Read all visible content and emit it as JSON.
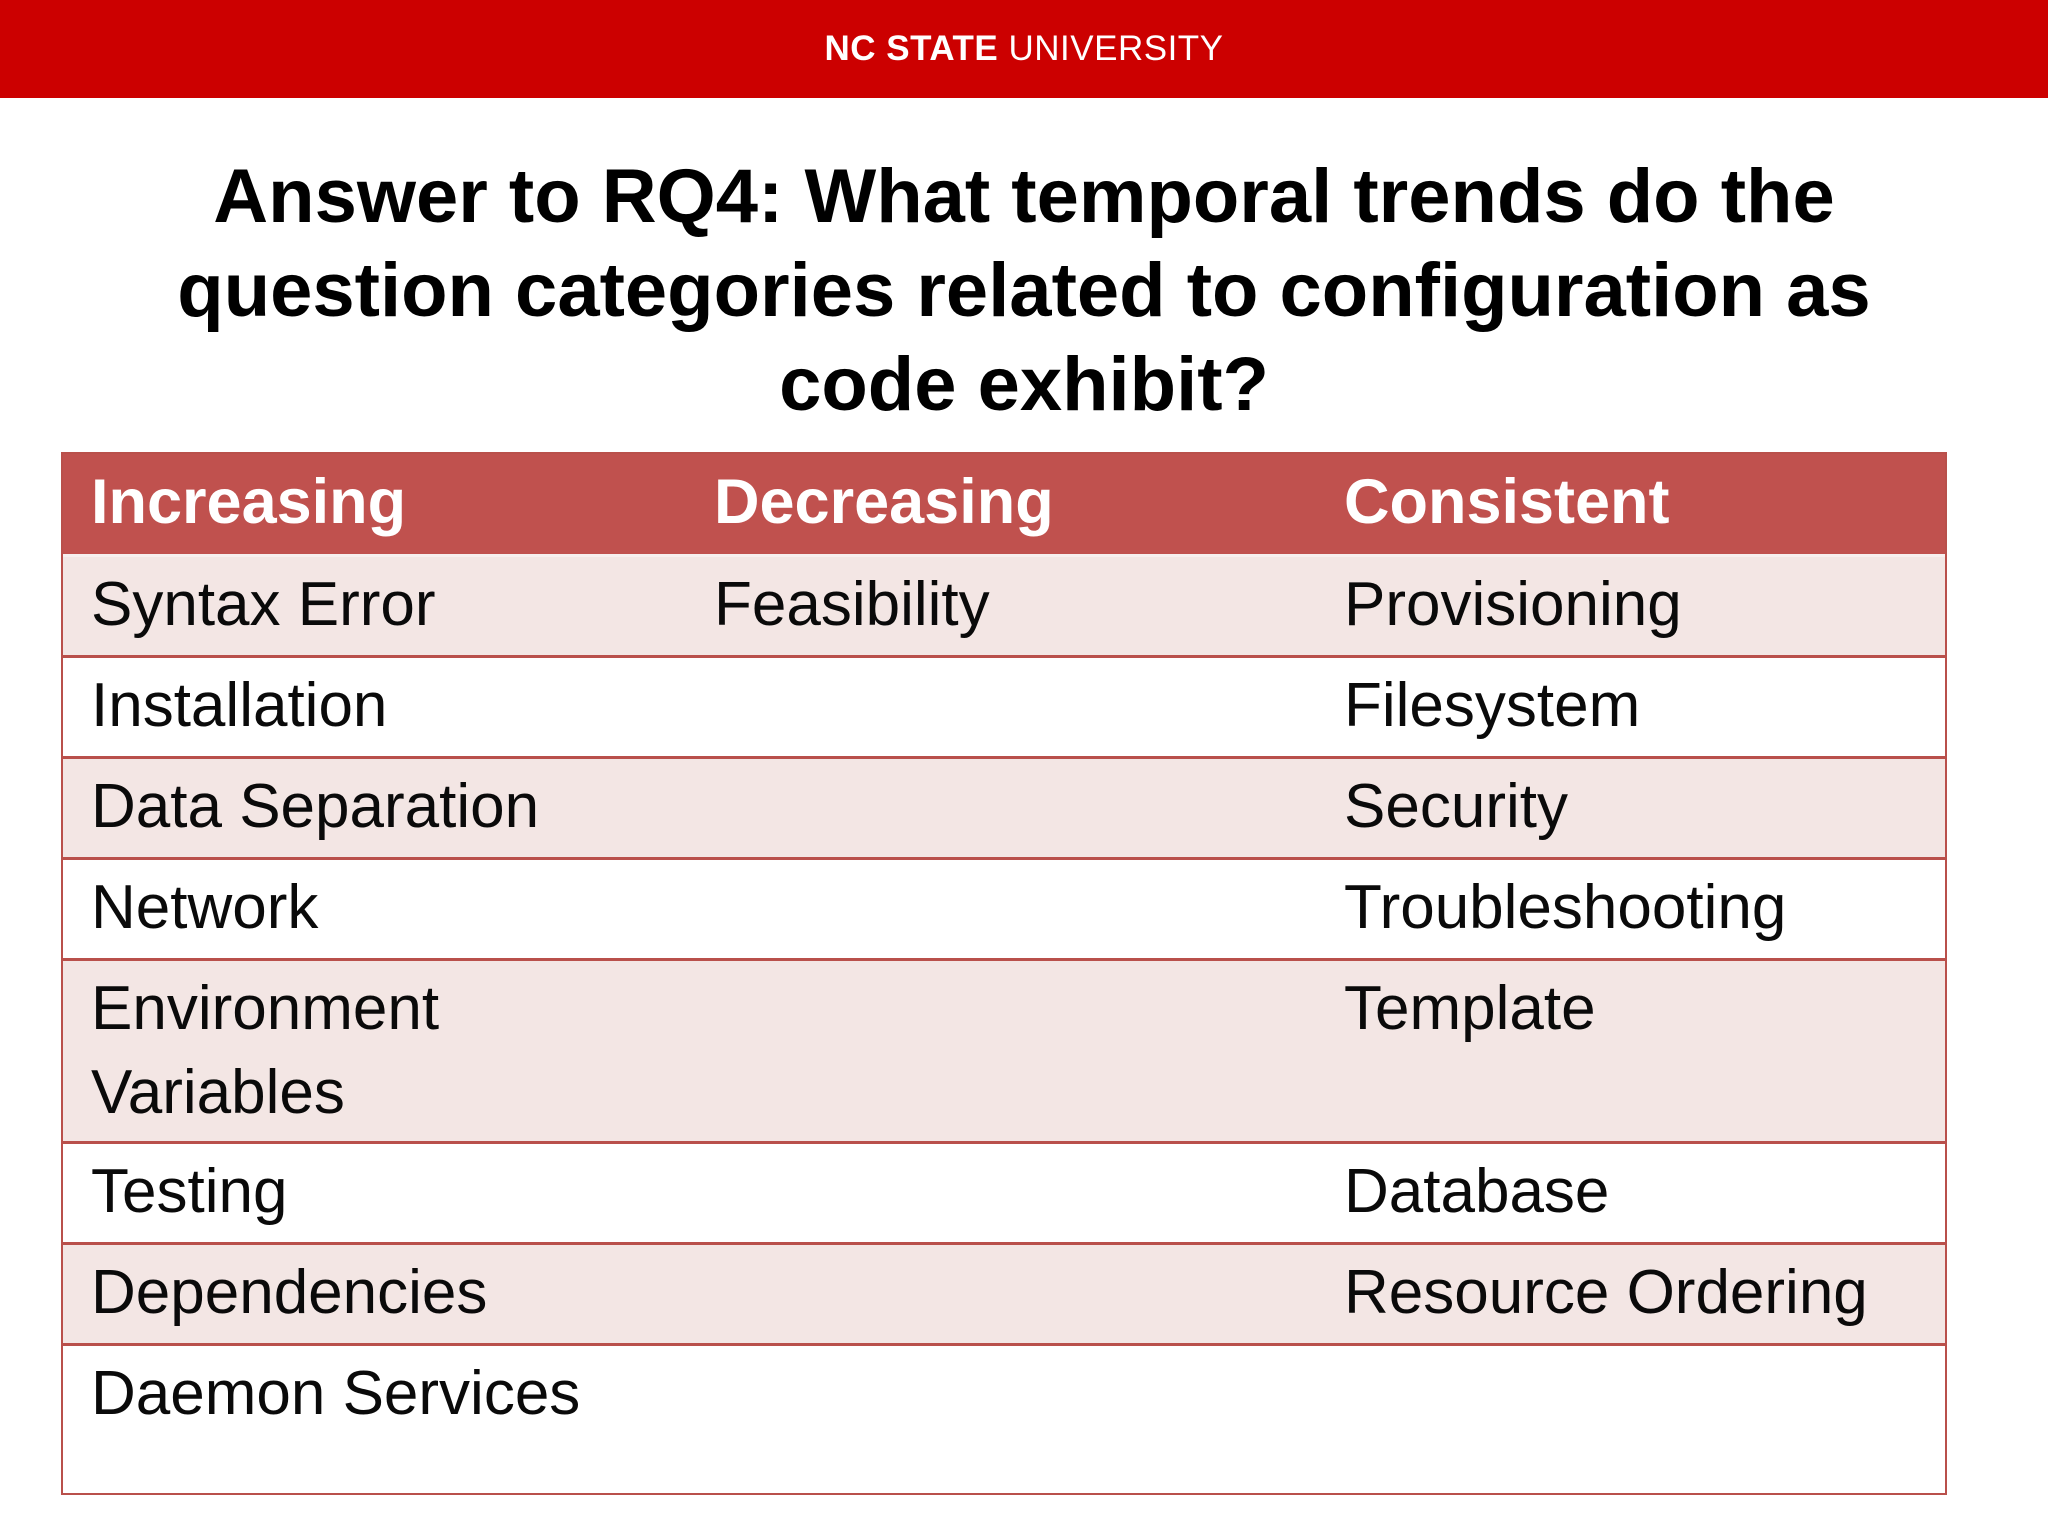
{
  "banner": {
    "logo_bold": "NC STATE",
    "logo_regular": " UNIVERSITY",
    "bg_color": "#CC0000",
    "text_color": "#FFFFFF"
  },
  "title": "Answer to RQ4: What temporal trends do the question categories related to configuration as code exhibit?",
  "table": {
    "header_bg_color": "#C0514E",
    "header_text_color": "#FFFFFF",
    "alt_row_color": "#F3E6E4",
    "border_color": "#B9504B",
    "columns": [
      "Increasing",
      "Decreasing",
      "Consistent"
    ],
    "rows": [
      [
        "Syntax Error",
        "Feasibility",
        "Provisioning"
      ],
      [
        "Installation",
        "",
        "Filesystem"
      ],
      [
        "Data Separation",
        "",
        "Security"
      ],
      [
        "Network",
        "",
        "Troubleshooting"
      ],
      [
        "Environment Variables",
        "",
        "Template"
      ],
      [
        "Testing",
        "",
        "Database"
      ],
      [
        "Dependencies",
        "",
        "Resource Ordering"
      ],
      [
        "Daemon Services",
        "",
        ""
      ]
    ]
  }
}
